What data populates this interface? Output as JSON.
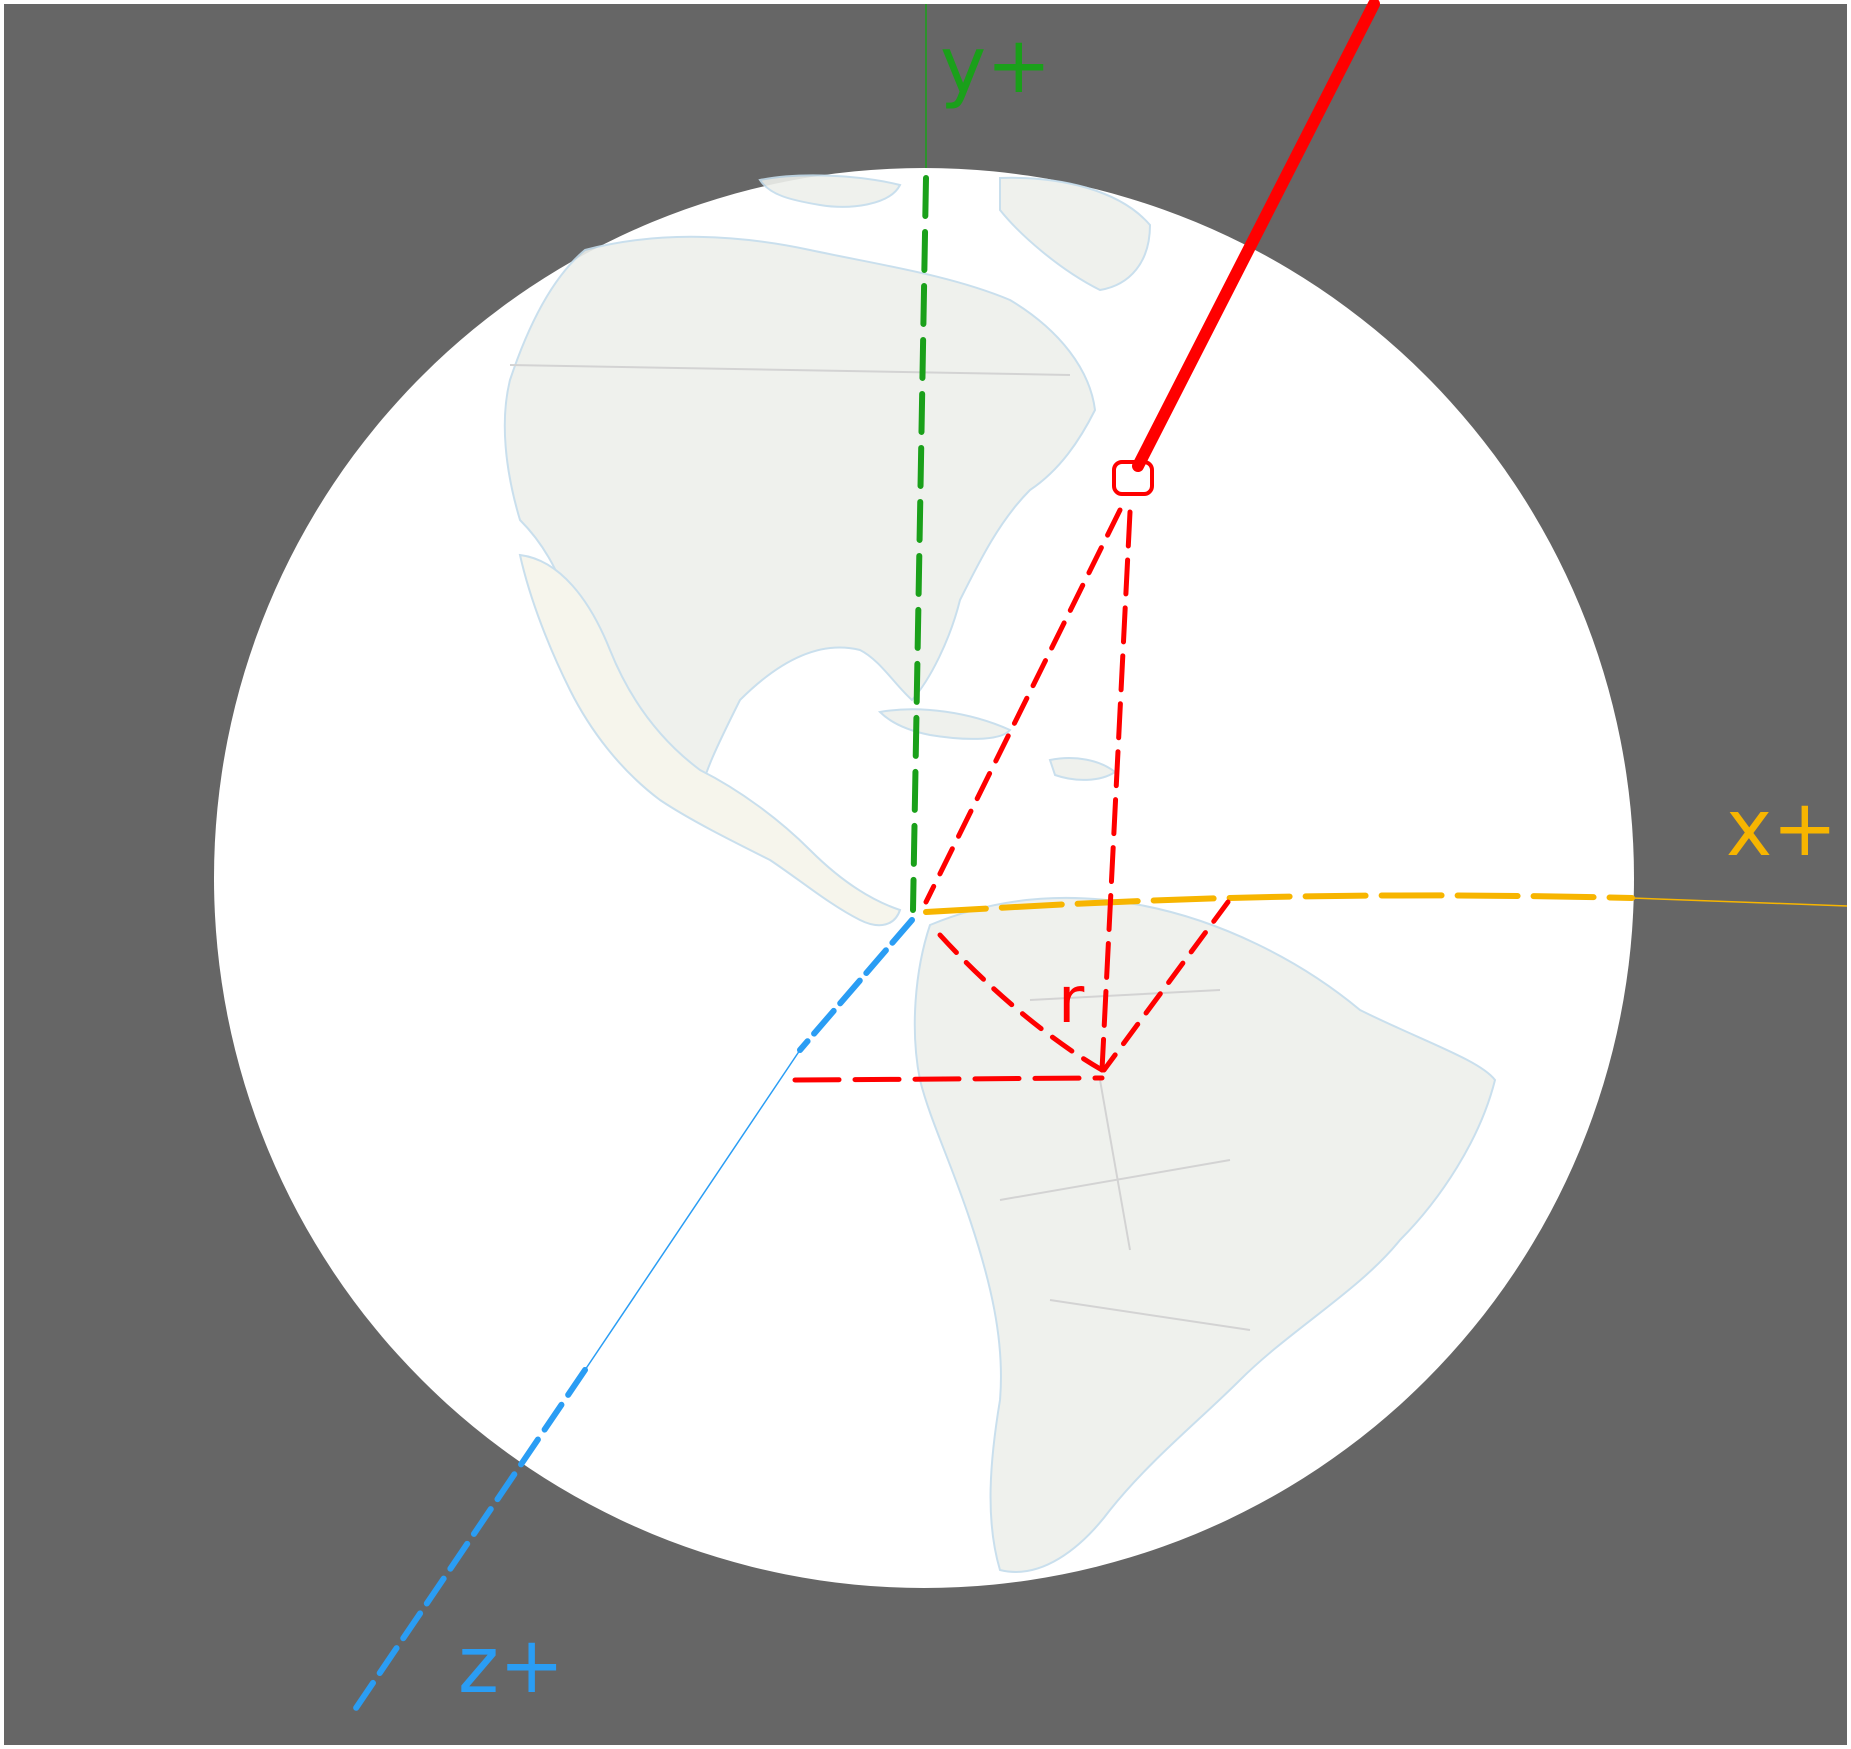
{
  "scene": {
    "background_color": "#666666",
    "globe_color": "#ffffff",
    "land_color": "#eef0ec",
    "land_border_color": "#c4dcec",
    "axes": {
      "y": {
        "label": "y+",
        "color": "#1aa01a"
      },
      "x": {
        "label": "x+",
        "color": "#f7b500"
      },
      "z": {
        "label": "z+",
        "color": "#2a9df4"
      }
    },
    "vector": {
      "color": "#ff0000"
    },
    "projection_label": "r"
  }
}
